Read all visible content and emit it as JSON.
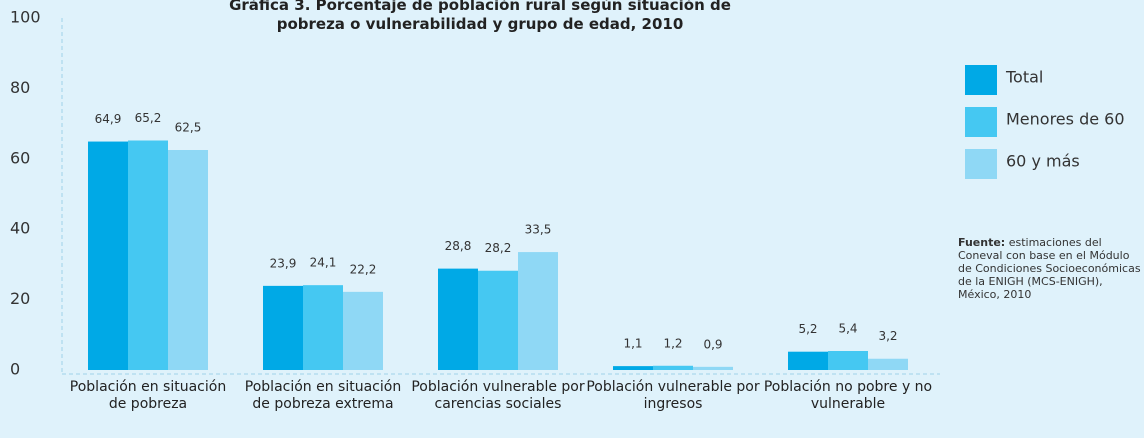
{
  "chart_data": {
    "type": "bar",
    "title": "Gráfica 3. Porcentaje de población rural según situación de pobreza o vulnerabilidad y grupo de edad, 2010",
    "categories": [
      "Población en situación de pobreza",
      "Población en situación de pobreza extrema",
      "Población vulnerable por carencias sociales",
      "Población vulnerable por ingresos",
      "Población no pobre y no vulnerable"
    ],
    "series": [
      {
        "name": "Total",
        "color": "#00a9e6",
        "values": [
          64.9,
          23.9,
          28.8,
          1.1,
          5.2
        ],
        "value_labels": [
          "64,9",
          "23,9",
          "28,8",
          "1,1",
          "5,2"
        ]
      },
      {
        "name": "Menores de 60",
        "color": "#45c8f2",
        "values": [
          65.2,
          24.1,
          28.2,
          1.2,
          5.4
        ],
        "value_labels": [
          "65,2",
          "24,1",
          "28,2",
          "1,2",
          "5,4"
        ]
      },
      {
        "name": "60 y más",
        "color": "#8fd8f5",
        "values": [
          62.5,
          22.2,
          33.5,
          0.9,
          3.2
        ],
        "value_labels": [
          "62,5",
          "22,2",
          "33,5",
          "0,9",
          "3,2"
        ]
      }
    ],
    "ylim": [
      0,
      100
    ],
    "yticks": [
      0,
      20,
      40,
      60,
      80,
      100
    ],
    "legend": "right",
    "source_label": "Fuente:",
    "source": "estimaciones del Coneval con base en el Módulo de Condiciones Socioeconómicas de la ENIGH (MCS-ENIGH), México, 2010"
  }
}
